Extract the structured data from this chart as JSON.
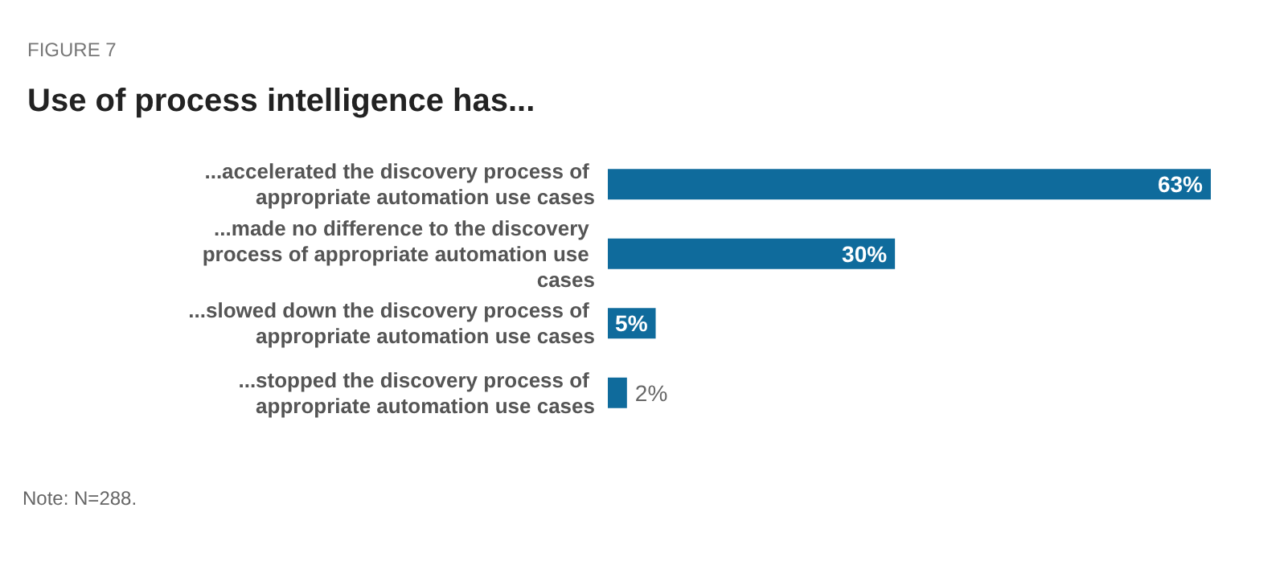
{
  "chart_data": {
    "type": "bar",
    "orientation": "horizontal",
    "subtitle": "FIGURE 7",
    "title": "Use of process intelligence has...",
    "categories": [
      "...accelerated the discovery process of appropriate automation use cases",
      "...made no difference to the discovery process of appropriate automation use cases",
      "...slowed down the discovery process of appropriate automation use cases",
      "...stopped the discovery process of appropriate automation use cases"
    ],
    "values": [
      63,
      30,
      5,
      2
    ],
    "value_labels": [
      "63%",
      "30%",
      "5%",
      "2%"
    ],
    "color": "#0f6b9c",
    "annotations": [
      "Note: N=288."
    ]
  }
}
